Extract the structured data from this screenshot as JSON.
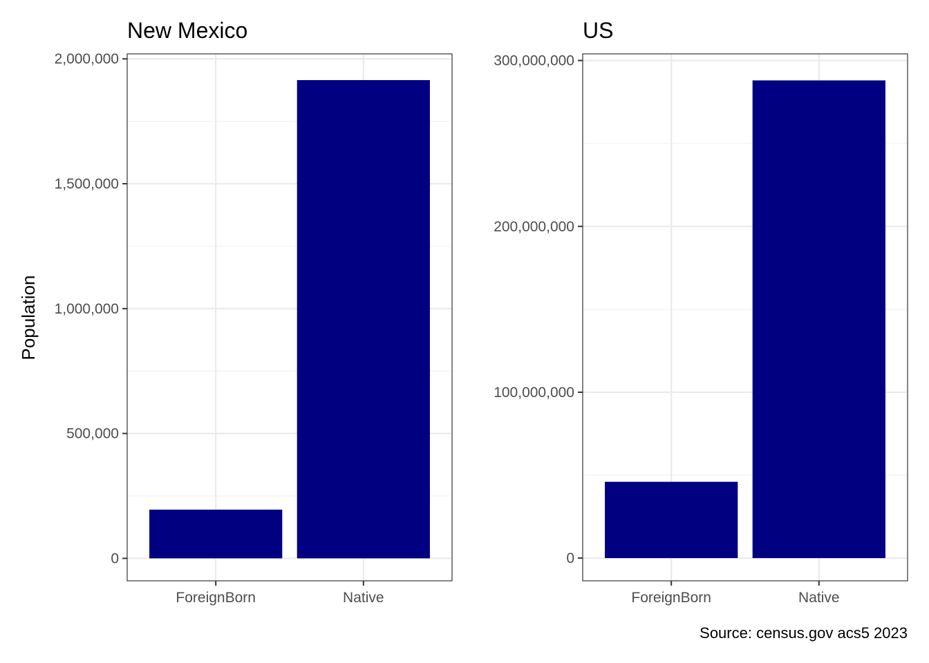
{
  "ylabel": "Population",
  "caption": "Source: census.gov acs5 2023",
  "colors": {
    "bar": "#000080",
    "grid_major": "#ebebeb",
    "grid_minor": "#f2f2f2",
    "panel_border": "#333333",
    "tick_text": "#4d4d4d"
  },
  "chart_data": [
    {
      "type": "bar",
      "title": "New Mexico",
      "xlabel": "",
      "ylabel": "Population",
      "categories": [
        "ForeignBorn",
        "Native"
      ],
      "values": [
        195000,
        1915000
      ],
      "ylim": [
        -90000,
        2020000
      ],
      "yticks": [
        0,
        500000,
        1000000,
        1500000,
        2000000
      ],
      "ytick_labels": [
        "0",
        "500,000",
        "1,000,000",
        "1,500,000",
        "2,000,000"
      ],
      "grid": true
    },
    {
      "type": "bar",
      "title": "US",
      "xlabel": "",
      "ylabel": "",
      "categories": [
        "ForeignBorn",
        "Native"
      ],
      "values": [
        46000000,
        288000000
      ],
      "ylim": [
        -13700000,
        304000000
      ],
      "yticks": [
        0,
        100000000,
        200000000,
        300000000
      ],
      "ytick_labels": [
        "0",
        "100,000,000",
        "200,000,000",
        "300,000,000"
      ],
      "grid": true
    }
  ]
}
